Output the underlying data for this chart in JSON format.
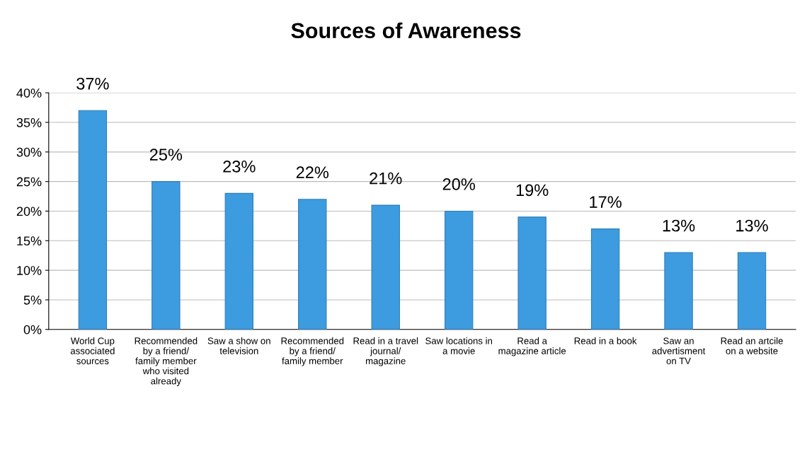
{
  "chart_data": {
    "type": "bar",
    "title": "Sources of Awareness",
    "categories": [
      "World Cup\nassociated\nsources",
      "Recommended\nby a friend/\nfamily member\nwho visited\nalready",
      "Saw a show on\ntelevision",
      "Recommended\nby a friend/\nfamily member",
      "Read in a travel\njournal/\nmagazine",
      "Saw locations in\na movie",
      "Read a\nmagazine article",
      "Read in a book",
      "Saw an\nadvertisment\non TV",
      "Read an artcile\non a website"
    ],
    "values": [
      37,
      25,
      23,
      22,
      21,
      20,
      19,
      17,
      13,
      13
    ],
    "value_labels": [
      "37%",
      "25%",
      "23%",
      "22%",
      "21%",
      "20%",
      "19%",
      "17%",
      "13%",
      "13%"
    ],
    "color": "#3d9be0",
    "ylim": [
      0,
      40
    ],
    "yticks": [
      {
        "value": 0,
        "label": "0%"
      },
      {
        "value": 5,
        "label": "5%"
      },
      {
        "value": 10,
        "label": "10%"
      },
      {
        "value": 15,
        "label": "15%"
      },
      {
        "value": 20,
        "label": "20%"
      },
      {
        "value": 25,
        "label": "25%"
      },
      {
        "value": 30,
        "label": "30%"
      },
      {
        "value": 35,
        "label": "35%"
      },
      {
        "value": 40,
        "label": "40%"
      }
    ],
    "grid": "y",
    "legend": false
  }
}
